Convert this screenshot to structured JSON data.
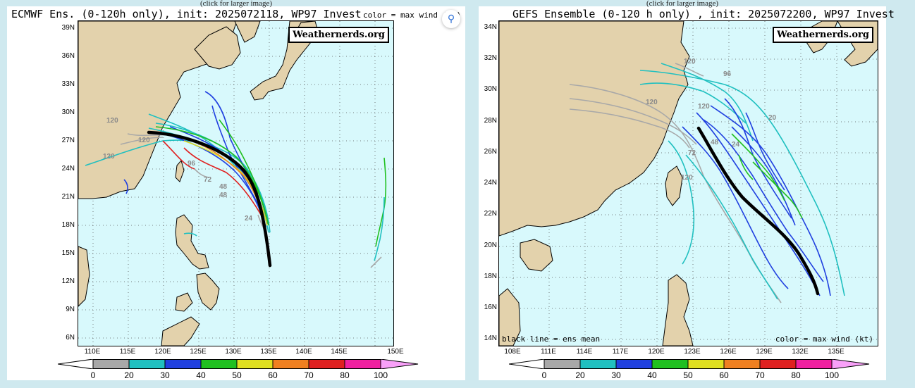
{
  "panels": [
    {
      "caption": "(click for larger image)",
      "title": "ECMWF Ens. (0-120h only), init: 2025072118, WP97 Invest",
      "color_note": "color = max wind (kt)",
      "watermark": "Weathernerds.org",
      "lat_labels": [
        "39N",
        "36N",
        "33N",
        "30N",
        "27N",
        "24N",
        "21N",
        "18N",
        "15N",
        "12N",
        "9N",
        "6N"
      ],
      "lon_labels": [
        "110E",
        "115E",
        "120E",
        "125E",
        "130E",
        "135E",
        "140E",
        "145E",
        "150E"
      ],
      "hour_labels": [
        "120",
        "120",
        "120",
        "96",
        "72",
        "48",
        "48",
        "24"
      ]
    },
    {
      "caption": "(click for larger image)",
      "title": "GEFS Ensemble (0-120 h only) , init: 2025072200, WP97 Invest",
      "color_note": "color = max wind (kt)",
      "legend_note": "black line = ens mean",
      "watermark": "Weathernerds.org",
      "lat_labels": [
        "34N",
        "32N",
        "30N",
        "28N",
        "26N",
        "24N",
        "22N",
        "20N",
        "18N",
        "16N",
        "14N"
      ],
      "lon_labels": [
        "108E",
        "111E",
        "114E",
        "117E",
        "120E",
        "123E",
        "126E",
        "129E",
        "132E",
        "135E"
      ],
      "hour_labels": [
        "120",
        "96",
        "120",
        "120",
        "72",
        "48",
        "24",
        "20",
        "120"
      ]
    }
  ],
  "colorbar": {
    "labels": [
      "0",
      "20",
      "30",
      "40",
      "50",
      "60",
      "70",
      "80",
      "100"
    ],
    "colors": [
      "#a8a8a8",
      "#20c0c0",
      "#2040e0",
      "#20c020",
      "#e0e020",
      "#f08020",
      "#e02020",
      "#f020a0"
    ]
  },
  "lens_icon": "visual-search-icon"
}
